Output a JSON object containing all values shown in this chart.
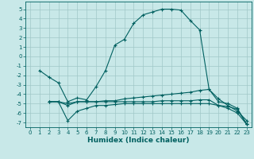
{
  "xlabel": "Humidex (Indice chaleur)",
  "bg_color": "#c8e8e8",
  "grid_color": "#a0c8c8",
  "line_color": "#006060",
  "xlim": [
    -0.5,
    23.5
  ],
  "ylim": [
    -7.5,
    5.8
  ],
  "xticks": [
    0,
    1,
    2,
    3,
    4,
    5,
    6,
    7,
    8,
    9,
    10,
    11,
    12,
    13,
    14,
    15,
    16,
    17,
    18,
    19,
    20,
    21,
    22,
    23
  ],
  "yticks": [
    -7,
    -6,
    -5,
    -4,
    -3,
    -2,
    -1,
    0,
    1,
    2,
    3,
    4,
    5
  ],
  "line1_x": [
    1,
    2,
    3,
    4,
    5,
    6,
    7,
    8,
    9,
    10,
    11,
    12,
    13,
    14,
    15,
    16,
    17,
    18,
    19,
    20,
    21,
    22,
    23
  ],
  "line1_y": [
    -1.5,
    -2.2,
    -2.8,
    -4.8,
    -4.4,
    -4.6,
    -3.2,
    -1.5,
    1.2,
    1.8,
    3.5,
    4.4,
    4.7,
    5.0,
    5.0,
    4.9,
    3.8,
    2.8,
    -3.5,
    -4.5,
    -5.2,
    -5.8,
    -6.8
  ],
  "line2_x": [
    2,
    3,
    4,
    5,
    6,
    7,
    8,
    9,
    10,
    11,
    12,
    13,
    14,
    15,
    16,
    17,
    18,
    19,
    20,
    21,
    22,
    23
  ],
  "line2_y": [
    -4.8,
    -4.8,
    -5.2,
    -4.8,
    -4.8,
    -4.8,
    -4.7,
    -4.7,
    -4.5,
    -4.4,
    -4.3,
    -4.2,
    -4.1,
    -4.0,
    -3.9,
    -3.8,
    -3.6,
    -3.5,
    -4.8,
    -5.0,
    -5.5,
    -7.2
  ],
  "line3_x": [
    2,
    3,
    4,
    5,
    6,
    7,
    8,
    9,
    10,
    11,
    12,
    13,
    14,
    15,
    16,
    17,
    18,
    19,
    20,
    21,
    22,
    23
  ],
  "line3_y": [
    -4.8,
    -4.8,
    -6.8,
    -5.8,
    -5.5,
    -5.2,
    -5.2,
    -5.1,
    -5.0,
    -5.0,
    -5.0,
    -5.0,
    -5.0,
    -5.0,
    -5.0,
    -5.0,
    -5.0,
    -5.0,
    -5.2,
    -5.3,
    -5.6,
    -7.2
  ],
  "line4_x": [
    2,
    3,
    4,
    5,
    6,
    7,
    8,
    9,
    10,
    11,
    12,
    13,
    14,
    15,
    16,
    17,
    18,
    19,
    20,
    21,
    22,
    23
  ],
  "line4_y": [
    -4.8,
    -4.8,
    -5.0,
    -4.8,
    -4.8,
    -4.8,
    -4.8,
    -4.8,
    -4.8,
    -4.8,
    -4.8,
    -4.8,
    -4.7,
    -4.7,
    -4.7,
    -4.7,
    -4.6,
    -4.6,
    -5.2,
    -5.5,
    -6.0,
    -7.2
  ],
  "tick_fontsize": 5,
  "xlabel_fontsize": 6.5
}
